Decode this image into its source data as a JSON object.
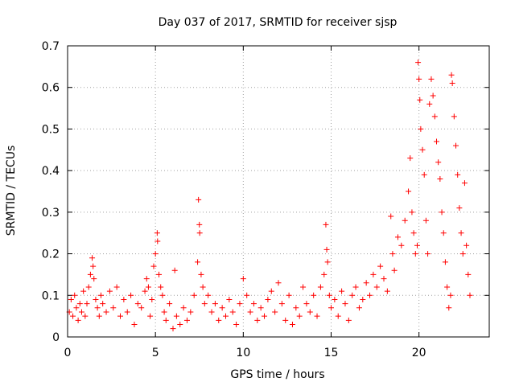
{
  "chart_data": {
    "type": "scatter",
    "title": "Day 037 of 2017, SRMTID for receiver sjsp",
    "xlabel": "GPS time / hours",
    "ylabel": "SRMTID / TECUs",
    "xlim": [
      0,
      24
    ],
    "ylim": [
      0,
      0.7
    ],
    "xticks": [
      0,
      5,
      10,
      15,
      20
    ],
    "yticks": [
      0,
      0.1,
      0.2,
      0.3,
      0.4,
      0.5,
      0.6,
      0.7
    ],
    "ytick_labels": [
      "0",
      "0.1",
      "0.2",
      "0.3",
      "0.4",
      "0.5",
      "0.6",
      "0.7"
    ],
    "grid": true,
    "marker": "+",
    "series": [
      {
        "name": "SRMTID",
        "color": "#ff0000",
        "points": [
          [
            0.1,
            0.06
          ],
          [
            0.2,
            0.09
          ],
          [
            0.3,
            0.05
          ],
          [
            0.4,
            0.1
          ],
          [
            0.5,
            0.07
          ],
          [
            0.6,
            0.04
          ],
          [
            0.7,
            0.08
          ],
          [
            0.8,
            0.06
          ],
          [
            0.9,
            0.11
          ],
          [
            1.0,
            0.05
          ],
          [
            1.1,
            0.08
          ],
          [
            1.2,
            0.12
          ],
          [
            1.3,
            0.15
          ],
          [
            1.4,
            0.19
          ],
          [
            1.45,
            0.17
          ],
          [
            1.5,
            0.14
          ],
          [
            1.6,
            0.09
          ],
          [
            1.7,
            0.07
          ],
          [
            1.8,
            0.05
          ],
          [
            1.9,
            0.1
          ],
          [
            2.0,
            0.08
          ],
          [
            2.2,
            0.06
          ],
          [
            2.4,
            0.11
          ],
          [
            2.6,
            0.07
          ],
          [
            2.8,
            0.12
          ],
          [
            3.0,
            0.05
          ],
          [
            3.2,
            0.09
          ],
          [
            3.4,
            0.06
          ],
          [
            3.6,
            0.1
          ],
          [
            3.8,
            0.03
          ],
          [
            4.0,
            0.08
          ],
          [
            4.2,
            0.07
          ],
          [
            4.4,
            0.11
          ],
          [
            4.5,
            0.14
          ],
          [
            4.6,
            0.12
          ],
          [
            4.7,
            0.05
          ],
          [
            4.8,
            0.09
          ],
          [
            4.9,
            0.17
          ],
          [
            5.0,
            0.2
          ],
          [
            5.1,
            0.25
          ],
          [
            5.12,
            0.23
          ],
          [
            5.2,
            0.15
          ],
          [
            5.3,
            0.12
          ],
          [
            5.4,
            0.1
          ],
          [
            5.5,
            0.06
          ],
          [
            5.6,
            0.04
          ],
          [
            5.8,
            0.08
          ],
          [
            6.0,
            0.02
          ],
          [
            6.1,
            0.16
          ],
          [
            6.2,
            0.05
          ],
          [
            6.4,
            0.03
          ],
          [
            6.6,
            0.07
          ],
          [
            6.8,
            0.04
          ],
          [
            7.0,
            0.06
          ],
          [
            7.2,
            0.1
          ],
          [
            7.4,
            0.18
          ],
          [
            7.45,
            0.33
          ],
          [
            7.5,
            0.27
          ],
          [
            7.52,
            0.25
          ],
          [
            7.6,
            0.15
          ],
          [
            7.7,
            0.12
          ],
          [
            7.8,
            0.08
          ],
          [
            8.0,
            0.1
          ],
          [
            8.2,
            0.06
          ],
          [
            8.4,
            0.08
          ],
          [
            8.6,
            0.04
          ],
          [
            8.8,
            0.07
          ],
          [
            9.0,
            0.05
          ],
          [
            9.2,
            0.09
          ],
          [
            9.4,
            0.06
          ],
          [
            9.6,
            0.03
          ],
          [
            9.8,
            0.08
          ],
          [
            10.0,
            0.14
          ],
          [
            10.2,
            0.1
          ],
          [
            10.4,
            0.06
          ],
          [
            10.6,
            0.08
          ],
          [
            10.8,
            0.04
          ],
          [
            11.0,
            0.07
          ],
          [
            11.2,
            0.05
          ],
          [
            11.4,
            0.09
          ],
          [
            11.6,
            0.11
          ],
          [
            11.8,
            0.06
          ],
          [
            12.0,
            0.13
          ],
          [
            12.2,
            0.08
          ],
          [
            12.4,
            0.04
          ],
          [
            12.6,
            0.1
          ],
          [
            12.8,
            0.03
          ],
          [
            13.0,
            0.07
          ],
          [
            13.2,
            0.05
          ],
          [
            13.4,
            0.12
          ],
          [
            13.6,
            0.08
          ],
          [
            13.8,
            0.06
          ],
          [
            14.0,
            0.1
          ],
          [
            14.2,
            0.05
          ],
          [
            14.4,
            0.12
          ],
          [
            14.6,
            0.15
          ],
          [
            14.7,
            0.27
          ],
          [
            14.75,
            0.21
          ],
          [
            14.8,
            0.18
          ],
          [
            14.9,
            0.1
          ],
          [
            15.0,
            0.07
          ],
          [
            15.2,
            0.09
          ],
          [
            15.4,
            0.05
          ],
          [
            15.6,
            0.11
          ],
          [
            15.8,
            0.08
          ],
          [
            16.0,
            0.04
          ],
          [
            16.2,
            0.1
          ],
          [
            16.4,
            0.12
          ],
          [
            16.6,
            0.07
          ],
          [
            16.8,
            0.09
          ],
          [
            17.0,
            0.13
          ],
          [
            17.2,
            0.1
          ],
          [
            17.4,
            0.15
          ],
          [
            17.6,
            0.12
          ],
          [
            17.8,
            0.17
          ],
          [
            18.0,
            0.14
          ],
          [
            18.2,
            0.11
          ],
          [
            18.4,
            0.29
          ],
          [
            18.5,
            0.2
          ],
          [
            18.6,
            0.16
          ],
          [
            18.8,
            0.24
          ],
          [
            19.0,
            0.22
          ],
          [
            19.2,
            0.28
          ],
          [
            19.4,
            0.35
          ],
          [
            19.5,
            0.43
          ],
          [
            19.6,
            0.3
          ],
          [
            19.7,
            0.25
          ],
          [
            19.8,
            0.2
          ],
          [
            19.9,
            0.22
          ],
          [
            19.95,
            0.66
          ],
          [
            20.0,
            0.62
          ],
          [
            20.05,
            0.57
          ],
          [
            20.1,
            0.5
          ],
          [
            20.2,
            0.45
          ],
          [
            20.3,
            0.39
          ],
          [
            20.4,
            0.28
          ],
          [
            20.5,
            0.2
          ],
          [
            20.6,
            0.56
          ],
          [
            20.7,
            0.62
          ],
          [
            20.8,
            0.58
          ],
          [
            20.9,
            0.53
          ],
          [
            21.0,
            0.47
          ],
          [
            21.1,
            0.42
          ],
          [
            21.2,
            0.38
          ],
          [
            21.3,
            0.3
          ],
          [
            21.4,
            0.25
          ],
          [
            21.5,
            0.18
          ],
          [
            21.6,
            0.12
          ],
          [
            21.7,
            0.07
          ],
          [
            21.8,
            0.1
          ],
          [
            21.85,
            0.63
          ],
          [
            21.9,
            0.61
          ],
          [
            22.0,
            0.53
          ],
          [
            22.1,
            0.46
          ],
          [
            22.2,
            0.39
          ],
          [
            22.3,
            0.31
          ],
          [
            22.4,
            0.25
          ],
          [
            22.5,
            0.2
          ],
          [
            22.6,
            0.37
          ],
          [
            22.7,
            0.22
          ],
          [
            22.8,
            0.15
          ],
          [
            22.9,
            0.1
          ]
        ]
      }
    ]
  }
}
